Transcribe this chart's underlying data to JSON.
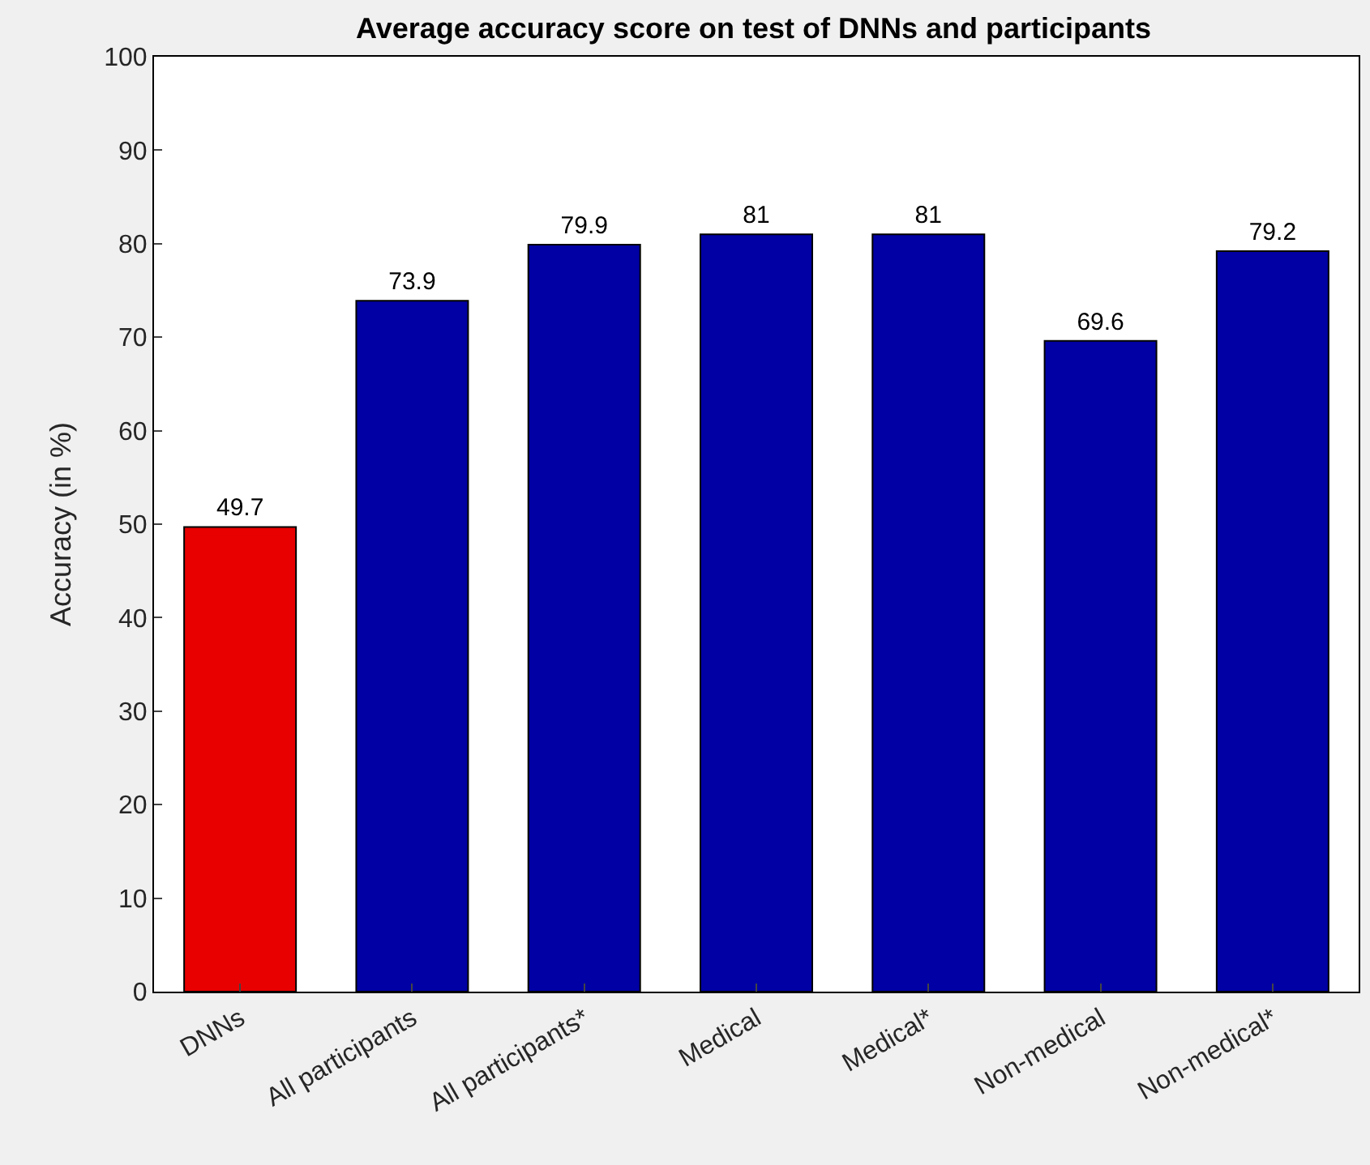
{
  "chart_data": {
    "type": "bar",
    "title": "Average accuracy score on test of DNNs and participants",
    "ylabel": "Accuracy (in %)",
    "categories": [
      "DNNs",
      "All participants",
      "All participants*",
      "Medical",
      "Medical*",
      "Non-medical",
      "Non-medical*"
    ],
    "values": [
      49.7,
      73.9,
      79.9,
      81,
      81,
      69.6,
      79.2
    ],
    "colors": [
      "#e80000",
      "#0000a4",
      "#0000a4",
      "#0000a4",
      "#0000a4",
      "#0000a4",
      "#0000a4"
    ],
    "ylim": [
      0,
      100
    ],
    "yticks": [
      0,
      10,
      20,
      30,
      40,
      50,
      60,
      70,
      80,
      90,
      100
    ],
    "data_labels": true
  }
}
